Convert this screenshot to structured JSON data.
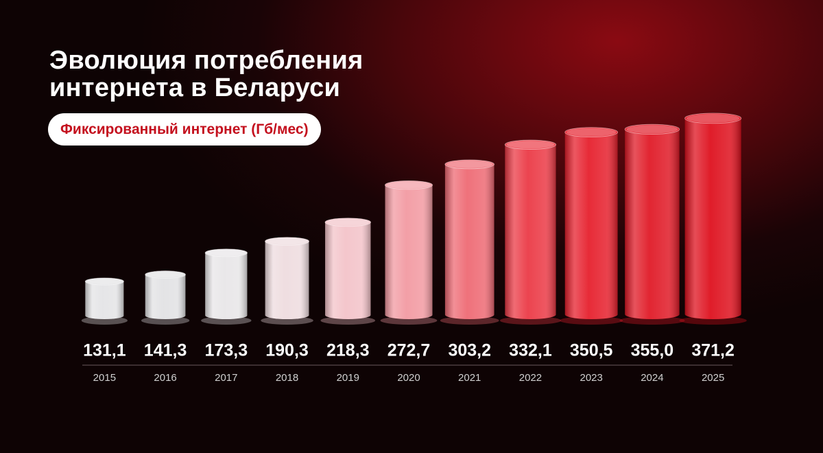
{
  "chart_data": {
    "type": "bar",
    "title": "Эволюция потребления интернета в Беларуси",
    "subtitle": "Фиксированный интернет (Гб/мес)",
    "categories": [
      "2015",
      "2016",
      "2017",
      "2018",
      "2019",
      "2020",
      "2021",
      "2022",
      "2023",
      "2024",
      "2025"
    ],
    "values": [
      131.1,
      141.3,
      173.3,
      190.3,
      218.3,
      272.7,
      303.2,
      332.1,
      350.5,
      355.0,
      371.2
    ],
    "value_labels": [
      "131,1",
      "141,3",
      "173,3",
      "190,3",
      "218,3",
      "272,7",
      "303,2",
      "332,1",
      "350,5",
      "355,0",
      "371,2"
    ],
    "colors": [
      "#e4e4e6",
      "#e2e2e4",
      "#e8e6e8",
      "#eedcdf",
      "#f3c3c9",
      "#f29aa2",
      "#ee6a74",
      "#eb3a46",
      "#e6202d",
      "#e01a27",
      "#de111e"
    ]
  }
}
